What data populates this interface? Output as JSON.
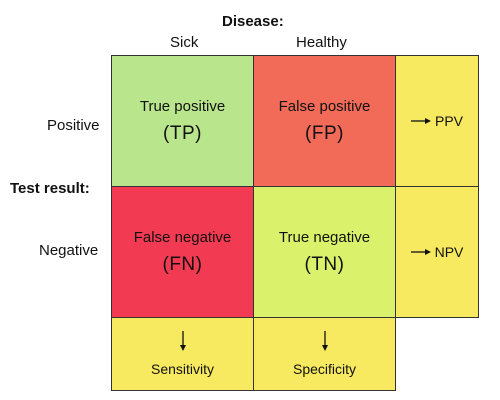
{
  "header": {
    "disease_label": "Disease:",
    "col_sick": "Sick",
    "col_healthy": "Healthy"
  },
  "rows": {
    "test_label": "Test result:",
    "row_positive": "Positive",
    "row_negative": "Negative"
  },
  "cells": {
    "tp": {
      "label": "True positive",
      "abbr": "(TP)",
      "color": "#b9e58c"
    },
    "fp": {
      "label": "False positive",
      "abbr": "(FP)",
      "color": "#f26b58"
    },
    "fn": {
      "label": "False negative",
      "abbr": "(FN)",
      "color": "#f23a52"
    },
    "tn": {
      "label": "True negative",
      "abbr": "(TN)",
      "color": "#daf26b"
    }
  },
  "metrics": {
    "ppv": "PPV",
    "npv": "NPV",
    "sensitivity": "Sensitivity",
    "specificity": "Specificity",
    "color": "#f7ea60"
  }
}
